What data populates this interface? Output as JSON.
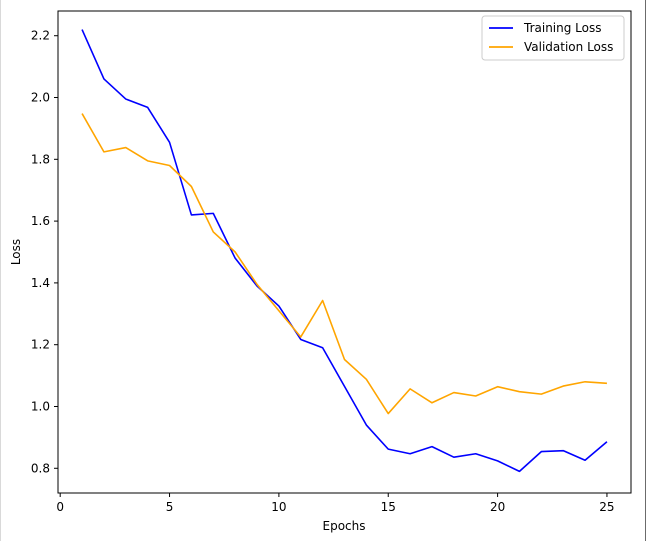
{
  "chart_data": {
    "type": "line",
    "title": "",
    "xlabel": "Epochs",
    "ylabel": "Loss",
    "xlim": [
      0,
      25
    ],
    "ylim": [
      0.72,
      2.28
    ],
    "x_ticks": [
      0,
      5,
      10,
      15,
      20,
      25
    ],
    "x_tick_labels": [
      "0",
      "5",
      "10",
      "15",
      "20",
      "25"
    ],
    "y_ticks": [
      0.8,
      1.0,
      1.2,
      1.4,
      1.6,
      1.8,
      2.0,
      2.2
    ],
    "y_tick_labels": [
      "0.8",
      "1.0",
      "1.2",
      "1.4",
      "1.6",
      "1.8",
      "2.0",
      "2.2"
    ],
    "grid": false,
    "legend_position": "top-right",
    "x": [
      1,
      2,
      3,
      4,
      5,
      6,
      7,
      8,
      9,
      10,
      11,
      12,
      13,
      14,
      15,
      16,
      17,
      18,
      19,
      20,
      21,
      22,
      23,
      24,
      25
    ],
    "series": [
      {
        "name": "Training Loss",
        "color": "#0000ff",
        "values": [
          2.22,
          2.06,
          1.995,
          1.968,
          1.855,
          1.62,
          1.625,
          1.48,
          1.39,
          1.325,
          1.217,
          1.19,
          1.065,
          0.94,
          0.862,
          0.847,
          0.87,
          0.836,
          0.847,
          0.824,
          0.79,
          0.854,
          0.857,
          0.826,
          0.886
        ]
      },
      {
        "name": "Validation Loss",
        "color": "#ffa500",
        "values": [
          1.948,
          1.824,
          1.838,
          1.795,
          1.78,
          1.712,
          1.565,
          1.5,
          1.395,
          1.31,
          1.225,
          1.343,
          1.152,
          1.088,
          0.977,
          1.057,
          1.012,
          1.045,
          1.034,
          1.064,
          1.048,
          1.04,
          1.066,
          1.08,
          1.075
        ]
      }
    ]
  }
}
